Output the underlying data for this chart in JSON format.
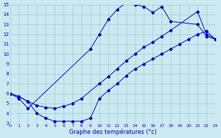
{
  "title": "Graphe des températures (°c)",
  "bg_color": "#cce8f0",
  "grid_color": "#99ccd8",
  "line_color": "#0000cc",
  "xlim": [
    0,
    23
  ],
  "ylim": [
    3,
    15
  ],
  "xticks": [
    0,
    1,
    2,
    3,
    4,
    5,
    6,
    7,
    8,
    9,
    10,
    11,
    12,
    13,
    14,
    15,
    16,
    17,
    18,
    19,
    20,
    21,
    22,
    23
  ],
  "yticks": [
    3,
    4,
    5,
    6,
    7,
    8,
    9,
    10,
    11,
    12,
    13,
    14,
    15
  ],
  "line1_x": [
    0,
    1,
    2,
    9,
    10,
    11,
    12,
    13,
    14,
    15,
    16,
    17,
    18,
    21,
    22,
    23
  ],
  "line1_y": [
    6.0,
    5.5,
    4.5,
    10.5,
    12.0,
    13.5,
    14.5,
    15.2,
    15.0,
    14.8,
    14.2,
    14.8,
    13.3,
    13.0,
    11.8,
    11.5
  ],
  "line2_x": [
    0,
    1,
    2,
    3,
    4,
    5,
    6,
    7,
    8,
    10,
    11,
    12,
    13,
    14,
    15,
    16,
    17,
    18,
    21,
    22,
    23
  ],
  "line2_y": [
    6.0,
    5.7,
    5.2,
    4.8,
    4.6,
    4.5,
    4.7,
    5.0,
    5.5,
    7.0,
    7.7,
    8.5,
    9.3,
    10.0,
    10.7,
    11.2,
    11.8,
    12.4,
    14.3,
    12.0,
    11.5
  ],
  "line3_x": [
    0,
    1,
    2,
    3,
    4,
    5,
    6,
    7,
    8,
    9,
    10,
    11,
    12,
    13,
    14,
    15,
    16,
    17,
    18,
    19,
    20,
    21,
    22,
    23
  ],
  "line3_y": [
    6.0,
    5.7,
    5.2,
    4.0,
    3.5,
    3.2,
    3.2,
    3.2,
    3.2,
    3.5,
    5.5,
    6.3,
    7.0,
    7.8,
    8.5,
    9.0,
    9.5,
    10.0,
    10.5,
    11.0,
    11.5,
    12.0,
    12.3,
    11.5
  ]
}
